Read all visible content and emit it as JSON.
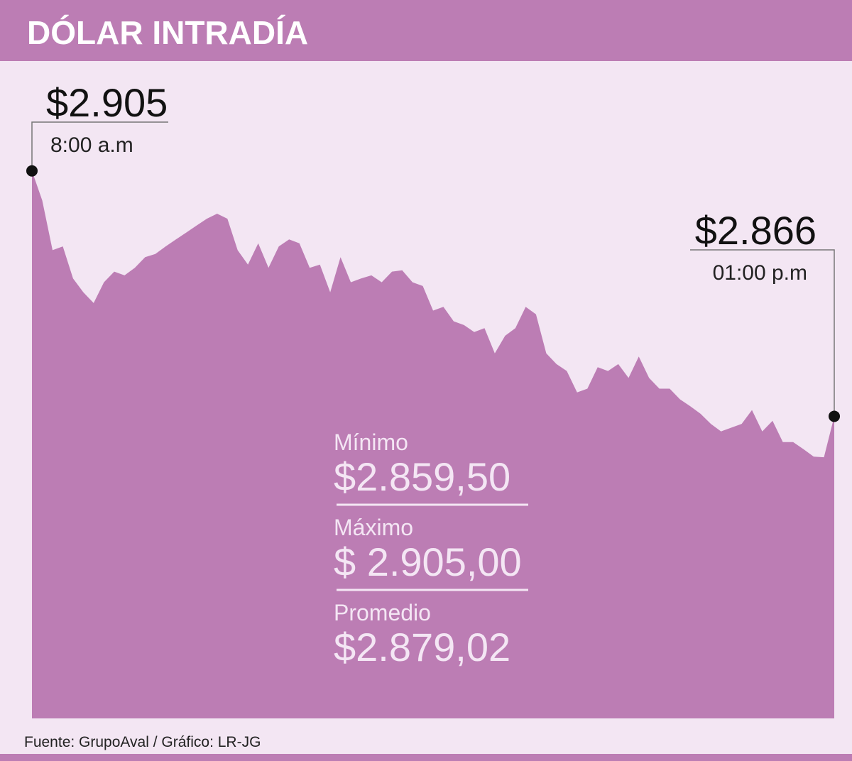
{
  "chart_data": {
    "type": "area",
    "title": "DÓLAR INTRADÍA",
    "categories": [
      "8:00 a.m",
      null,
      null,
      null,
      null,
      null,
      null,
      null,
      null,
      null,
      null,
      null,
      null,
      null,
      null,
      null,
      null,
      null,
      null,
      null,
      null,
      null,
      null,
      null,
      null,
      null,
      null,
      null,
      null,
      null,
      null,
      null,
      null,
      null,
      null,
      null,
      null,
      null,
      null,
      null,
      null,
      null,
      null,
      null,
      null,
      null,
      null,
      null,
      null,
      null,
      null,
      null,
      null,
      null,
      null,
      null,
      null,
      null,
      null,
      null,
      null,
      null,
      null,
      null,
      null,
      null,
      null,
      null,
      null,
      null,
      null,
      null,
      null,
      null,
      null,
      null,
      null,
      null,
      "01:00 p.m"
    ],
    "values": [
      2905,
      2900.3,
      2892.4,
      2893.0,
      2887.9,
      2885.7,
      2884.0,
      2887.3,
      2889.0,
      2888.4,
      2889.6,
      2891.3,
      2891.8,
      2893.0,
      2894.1,
      2895.2,
      2896.3,
      2897.4,
      2898.2,
      2897.4,
      2892.4,
      2890.1,
      2893.5,
      2889.6,
      2893.0,
      2894.1,
      2893.5,
      2889.6,
      2890.1,
      2885.7,
      2891.3,
      2887.3,
      2887.9,
      2888.4,
      2887.3,
      2889.0,
      2889.2,
      2887.3,
      2886.7,
      2882.8,
      2883.4,
      2881.1,
      2880.5,
      2879.4,
      2880.0,
      2876.0,
      2878.8,
      2880.0,
      2883.4,
      2882.2,
      2876.0,
      2874.3,
      2873.2,
      2869.8,
      2870.4,
      2873.8,
      2873.2,
      2874.3,
      2872.1,
      2875.5,
      2872.1,
      2870.4,
      2870.4,
      2868.7,
      2867.6,
      2866.4,
      2864.8,
      2863.6,
      2864.2,
      2864.8,
      2867.0,
      2863.6,
      2865.3,
      2861.9,
      2861.9,
      2860.8,
      2859.6,
      2859.5,
      2866
    ],
    "value_labels": [
      "$2.905",
      null,
      null,
      null,
      null,
      null,
      null,
      null,
      null,
      null,
      null,
      null,
      null,
      null,
      null,
      null,
      null,
      null,
      null,
      null,
      null,
      null,
      null,
      null,
      null,
      null,
      null,
      null,
      null,
      null,
      null,
      null,
      null,
      null,
      null,
      null,
      null,
      null,
      null,
      null,
      null,
      null,
      null,
      null,
      null,
      null,
      null,
      null,
      null,
      null,
      null,
      null,
      null,
      null,
      null,
      null,
      null,
      null,
      null,
      null,
      null,
      null,
      null,
      null,
      null,
      null,
      null,
      null,
      null,
      null,
      null,
      null,
      null,
      null,
      null,
      null,
      null,
      null,
      "$2.866"
    ],
    "color": "#bc7db4",
    "ylim": [
      2818,
      2922
    ],
    "stats": [
      {
        "name": "Mínimo",
        "label": "$2.859,50"
      },
      {
        "name": "Máximo",
        "label": "$ 2.905,00"
      },
      {
        "name": "Promedio",
        "label": "$2.879,02"
      }
    ],
    "source": "Fuente:  GrupoAval / Gráfico: LR-JG"
  }
}
